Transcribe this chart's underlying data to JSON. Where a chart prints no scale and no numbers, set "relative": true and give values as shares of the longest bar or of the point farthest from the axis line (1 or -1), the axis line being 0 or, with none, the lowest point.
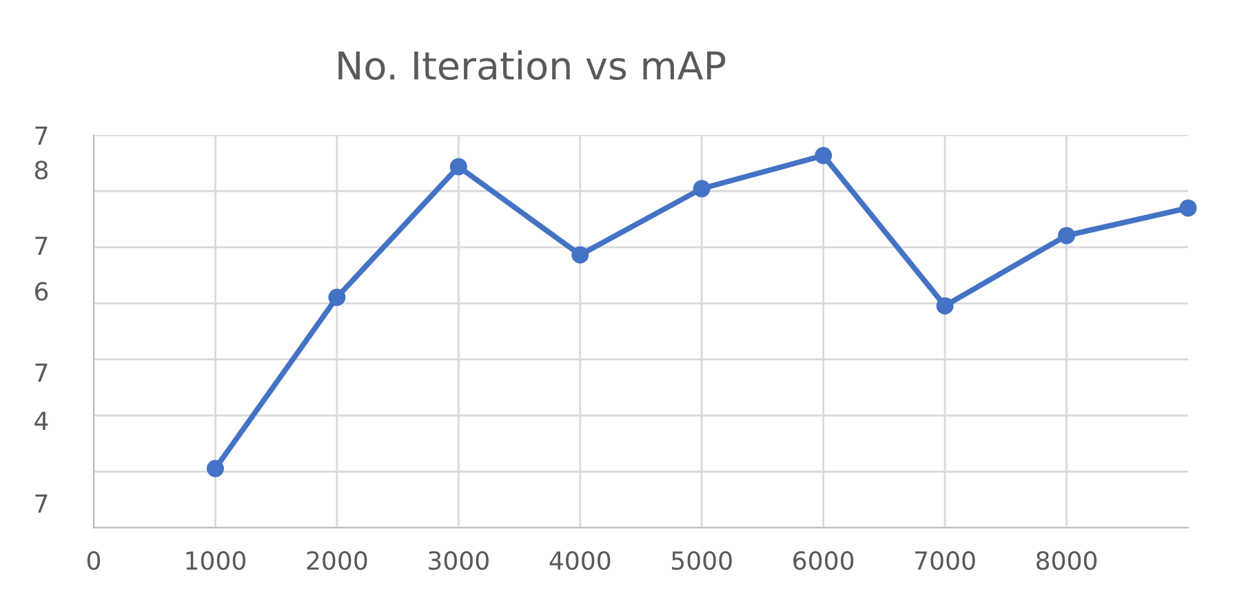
{
  "chart_data": {
    "type": "line",
    "title": "No. Iteration vs mAP",
    "x": [
      1000,
      2000,
      3000,
      4000,
      5000,
      6000,
      7000,
      8000,
      9000
    ],
    "series": [
      {
        "color": "#4472c4",
        "values": [
          0.159,
          0.619,
          0.97,
          0.733,
          0.911,
          1.0,
          0.596,
          0.785,
          0.859
        ]
      }
    ],
    "relative": true,
    "xlim": [
      0,
      9000
    ],
    "xticks": [
      0,
      1000,
      2000,
      3000,
      4000,
      5000,
      6000,
      7000,
      8000
    ],
    "annotations": [
      "7",
      "8",
      "7",
      "6",
      "7",
      "4",
      "7"
    ],
    "grid": true,
    "marker": "circle",
    "line_style": "solid",
    "legend": false
  }
}
